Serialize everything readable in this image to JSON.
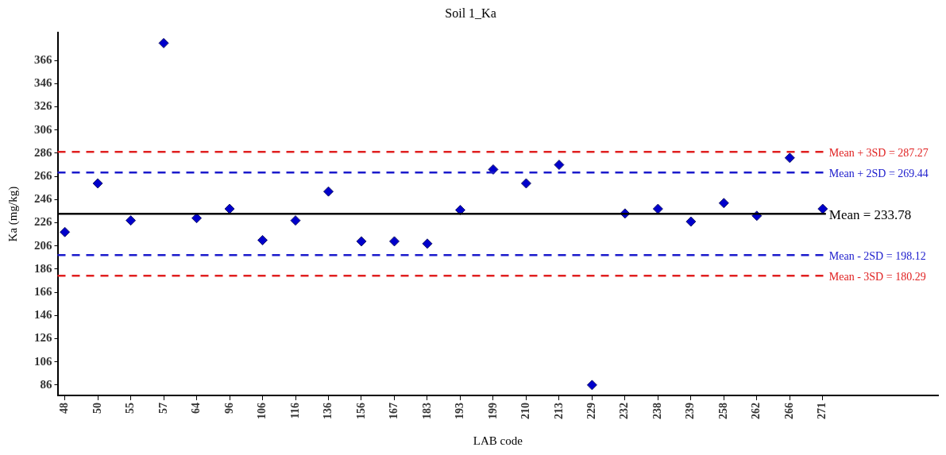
{
  "chart_data": {
    "type": "scatter",
    "title": "Soil 1_Ka",
    "xlabel": "LAB code",
    "ylabel": "Ka (mg/kg)",
    "categories": [
      "48",
      "50",
      "55",
      "57",
      "64",
      "96",
      "106",
      "116",
      "136",
      "156",
      "167",
      "183",
      "193",
      "199",
      "210",
      "213",
      "229",
      "232",
      "238",
      "239",
      "258",
      "262",
      "266",
      "271"
    ],
    "series": [
      {
        "color": "#0000cc",
        "values": [
          218,
          260,
          228,
          381,
          230,
          238,
          211,
          228,
          253,
          210,
          210,
          208,
          237,
          272,
          260,
          276,
          86,
          234,
          238,
          227,
          243,
          232,
          282,
          238
        ]
      }
    ],
    "ylim": [
      77,
      390
    ],
    "yticks": [
      86,
      106,
      126,
      146,
      166,
      186,
      206,
      226,
      246,
      266,
      286,
      306,
      326,
      346,
      366
    ],
    "grid": false,
    "legend": false,
    "marker": "diamond",
    "ref_lines": [
      {
        "axis": "y",
        "value": 287.27,
        "label": "Mean + 3SD = 287.27",
        "color": "#e02020",
        "line_style": "dashed"
      },
      {
        "axis": "y",
        "value": 269.44,
        "label": "Mean + 2SD = 269.44",
        "color": "#1a1acc",
        "line_style": "dashed"
      },
      {
        "axis": "y",
        "value": 233.78,
        "label": "Mean = 233.78",
        "color": "#000000",
        "line_style": "solid"
      },
      {
        "axis": "y",
        "value": 198.12,
        "label": "Mean - 2SD = 198.12",
        "color": "#1a1acc",
        "line_style": "dashed"
      },
      {
        "axis": "y",
        "value": 180.29,
        "label": "Mean - 3SD = 180.29",
        "color": "#e02020",
        "line_style": "dashed"
      }
    ]
  }
}
